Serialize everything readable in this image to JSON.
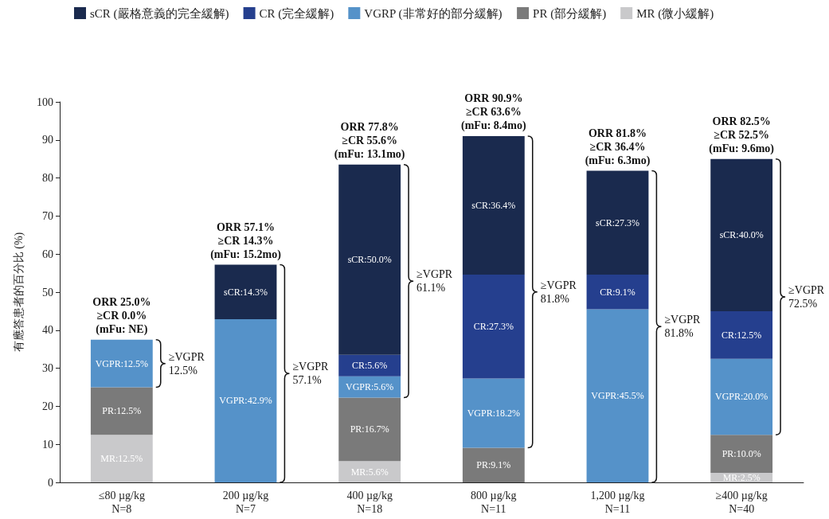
{
  "chart_data": {
    "type": "bar",
    "stacked": true,
    "ylabel": "有應答患者的百分比 (%)",
    "categories": [
      "≤80 µg/kg\nN=8",
      "200 µg/kg\nN=7",
      "400 µg/kg\nN=18",
      "800 µg/kg\nN=11",
      "1,200 µg/kg\nN=11",
      "≥400 µg/kg\nN=40"
    ],
    "series": [
      {
        "name": "MR (微小緩解)",
        "color": "#c9c9cb",
        "values": [
          12.5,
          null,
          5.6,
          null,
          null,
          2.5
        ],
        "value_labels": [
          "MR:12.5%",
          null,
          "MR:5.6%",
          null,
          null,
          "MR:2.5%"
        ]
      },
      {
        "name": "PR (部分緩解)",
        "color": "#7a7a7a",
        "values": [
          12.5,
          null,
          16.7,
          9.1,
          null,
          10.0
        ],
        "value_labels": [
          "PR:12.5%",
          null,
          "PR:16.7%",
          "PR:9.1%",
          null,
          "PR:10.0%"
        ]
      },
      {
        "name": "VGRP (非常好的部分緩解)",
        "color": "#5592c9",
        "values": [
          12.5,
          42.9,
          5.6,
          18.2,
          45.5,
          20.0
        ],
        "value_labels": [
          "VGPR:12.5%",
          "VGPR:42.9%",
          "VGPR:5.6%",
          "VGPR:18.2%",
          "VGPR:45.5%",
          "VGPR:20.0%"
        ]
      },
      {
        "name": "CR (完全緩解)",
        "color": "#253f8e",
        "values": [
          null,
          null,
          5.6,
          27.3,
          9.1,
          12.5
        ],
        "value_labels": [
          null,
          null,
          "CR:5.6%",
          "CR:27.3%",
          "CR:9.1%",
          "CR:12.5%"
        ]
      },
      {
        "name": "sCR (嚴格意義的完全緩解)",
        "color": "#1a2a4e",
        "values": [
          null,
          14.3,
          50.0,
          36.4,
          27.3,
          40.0
        ],
        "value_labels": [
          null,
          "sCR:14.3%",
          "sCR:50.0%",
          "sCR:36.4%",
          "sCR:27.3%",
          "sCR:40.0%"
        ]
      }
    ],
    "ylim": [
      0,
      100
    ],
    "yticks": [
      0,
      10,
      20,
      30,
      40,
      50,
      60,
      70,
      80,
      90,
      100
    ],
    "grid": false,
    "legend": "top left",
    "annotations": [
      {
        "text": "ORR 25.0%\n≥CR 0.0%\n(mFu: NE)",
        "x": "≤80 µg/kg\nN=8",
        "y": 37.5
      },
      {
        "text": "ORR 57.1%\n≥CR 14.3%\n(mFu: 15.2mo)",
        "x": "200 µg/kg\nN=7",
        "y": 57.2
      },
      {
        "text": "ORR 77.8%\n≥CR 55.6%\n(mFu: 13.1mo)",
        "x": "400 µg/kg\nN=18",
        "y": 83.5
      },
      {
        "text": "ORR 90.9%\n≥CR 63.6%\n(mFu: 8.4mo)",
        "x": "800 µg/kg\nN=11",
        "y": 91.0
      },
      {
        "text": "ORR 81.8%\n≥CR 36.4%\n(mFu: 6.3mo)",
        "x": "1,200 µg/kg\nN=11",
        "y": 81.9
      },
      {
        "text": "ORR 82.5%\n≥CR 52.5%\n(mFu: 9.6mo)",
        "x": "≥400 µg/kg\nN=40",
        "y": 85.0
      },
      "≥VGPR\n12.5%",
      "≥VGPR\n57.1%",
      "≥VGPR\n61.1%",
      "≥VGPR\n81.8%",
      "≥VGPR\n81.8%",
      "≥VGPR\n72.5%"
    ]
  }
}
